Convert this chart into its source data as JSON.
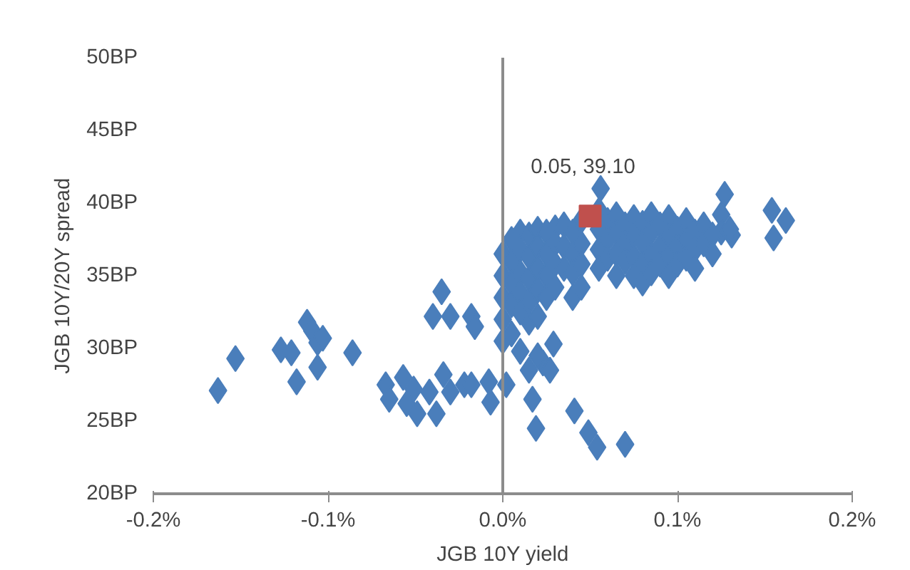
{
  "chart_data": {
    "type": "scatter",
    "xlabel": "JGB 10Y yield",
    "ylabel": "JGB 10Y/20Y spread",
    "xlim": [
      -0.2,
      0.2
    ],
    "ylim": [
      20,
      50
    ],
    "xticks": [
      {
        "value": -0.2,
        "label": "-0.2%"
      },
      {
        "value": -0.1,
        "label": "-0.1%"
      },
      {
        "value": 0,
        "label": "0.0%"
      },
      {
        "value": 0.1,
        "label": "0.1%"
      },
      {
        "value": 0.2,
        "label": "0.2%"
      }
    ],
    "yticks": [
      {
        "value": 20,
        "label": "20BP"
      },
      {
        "value": 25,
        "label": "25BP"
      },
      {
        "value": 30,
        "label": "30BP"
      },
      {
        "value": 35,
        "label": "35BP"
      },
      {
        "value": 40,
        "label": "40BP"
      },
      {
        "value": 45,
        "label": "45BP"
      },
      {
        "value": 50,
        "label": "50BP"
      }
    ],
    "grid": false,
    "ref_lines": [
      {
        "axis": "x",
        "value": 0,
        "color": "#8c8c8c"
      }
    ],
    "annotations": [
      {
        "text": "0.05, 39.10",
        "x": 0.05,
        "y": 39.1
      }
    ],
    "series": [
      {
        "color": "#4a7ebb",
        "marker": "diamond",
        "x": [
          -0.163,
          -0.153,
          -0.127,
          -0.121,
          -0.118,
          -0.112,
          -0.109,
          -0.106,
          -0.103,
          -0.106,
          -0.086,
          -0.067,
          -0.065,
          -0.057,
          -0.055,
          -0.051,
          -0.049,
          -0.042,
          -0.038,
          -0.034,
          -0.03,
          -0.022,
          -0.018,
          -0.035,
          -0.04,
          -0.03,
          -0.018,
          -0.016,
          -0.008,
          -0.007,
          0.002,
          0.017,
          0.019,
          0.023,
          0.027,
          0.029,
          0.041,
          0.049,
          0.054,
          0.07,
          0.127,
          0.125,
          0.125,
          0.131,
          0.154,
          0.162,
          0.155,
          0.056,
          0.0,
          0.0,
          0.0,
          0.0,
          0.0,
          0.005,
          0.005,
          0.005,
          0.005,
          0.005,
          0.01,
          0.01,
          0.01,
          0.01,
          0.01,
          0.01,
          0.015,
          0.015,
          0.015,
          0.015,
          0.015,
          0.015,
          0.02,
          0.02,
          0.02,
          0.02,
          0.02,
          0.02,
          0.025,
          0.025,
          0.025,
          0.025,
          0.03,
          0.03,
          0.03,
          0.03,
          0.035,
          0.035,
          0.035,
          0.04,
          0.04,
          0.04,
          0.04,
          0.045,
          0.045,
          0.045,
          0.045,
          0.055,
          0.055,
          0.055,
          0.055,
          0.06,
          0.06,
          0.06,
          0.065,
          0.065,
          0.065,
          0.065,
          0.07,
          0.07,
          0.07,
          0.075,
          0.075,
          0.075,
          0.075,
          0.08,
          0.08,
          0.08,
          0.08,
          0.085,
          0.085,
          0.085,
          0.085,
          0.09,
          0.09,
          0.09,
          0.095,
          0.095,
          0.095,
          0.095,
          0.1,
          0.1,
          0.1,
          0.105,
          0.105,
          0.105,
          0.11,
          0.11,
          0.11,
          0.115,
          0.115,
          0.12,
          0.12,
          0.13
        ],
        "values": [
          27.1,
          29.3,
          29.9,
          29.7,
          27.7,
          31.8,
          31.2,
          30.4,
          30.7,
          28.7,
          29.7,
          27.5,
          26.5,
          28.0,
          26.2,
          27.2,
          25.5,
          27.0,
          25.5,
          28.2,
          27.0,
          27.5,
          27.5,
          33.9,
          32.2,
          32.2,
          32.2,
          31.5,
          27.7,
          26.3,
          27.5,
          26.5,
          24.5,
          29.0,
          28.5,
          30.3,
          25.7,
          24.2,
          23.2,
          23.4,
          40.6,
          39.2,
          38.0,
          37.8,
          39.5,
          38.8,
          37.6,
          41.0,
          36.5,
          35.0,
          33.5,
          32.0,
          30.5,
          37.5,
          36.0,
          34.5,
          33.0,
          31.0,
          38.0,
          36.8,
          35.2,
          33.8,
          32.5,
          29.8,
          37.8,
          36.3,
          34.8,
          33.2,
          31.8,
          28.5,
          38.2,
          37.0,
          35.5,
          34.0,
          32.2,
          29.5,
          38.0,
          36.5,
          35.0,
          33.5,
          38.3,
          37.2,
          35.8,
          34.2,
          38.5,
          37.0,
          35.5,
          38.0,
          36.5,
          35.2,
          33.5,
          38.8,
          37.2,
          35.8,
          34.2,
          39.5,
          38.2,
          36.8,
          35.5,
          38.8,
          37.5,
          36.2,
          39.2,
          38.0,
          36.5,
          35.0,
          38.5,
          37.2,
          36.0,
          39.0,
          37.8,
          36.3,
          35.0,
          38.6,
          37.3,
          35.8,
          34.5,
          39.2,
          38.0,
          36.5,
          35.2,
          38.5,
          37.0,
          35.8,
          39.0,
          37.8,
          36.4,
          35.0,
          38.2,
          37.0,
          35.8,
          38.8,
          37.5,
          36.2,
          38.0,
          36.8,
          35.5,
          38.5,
          37.2,
          37.8,
          36.5,
          38.2
        ]
      },
      {
        "color": "#c0504d",
        "marker": "square",
        "x": [
          0.05
        ],
        "values": [
          39.1
        ]
      }
    ]
  }
}
